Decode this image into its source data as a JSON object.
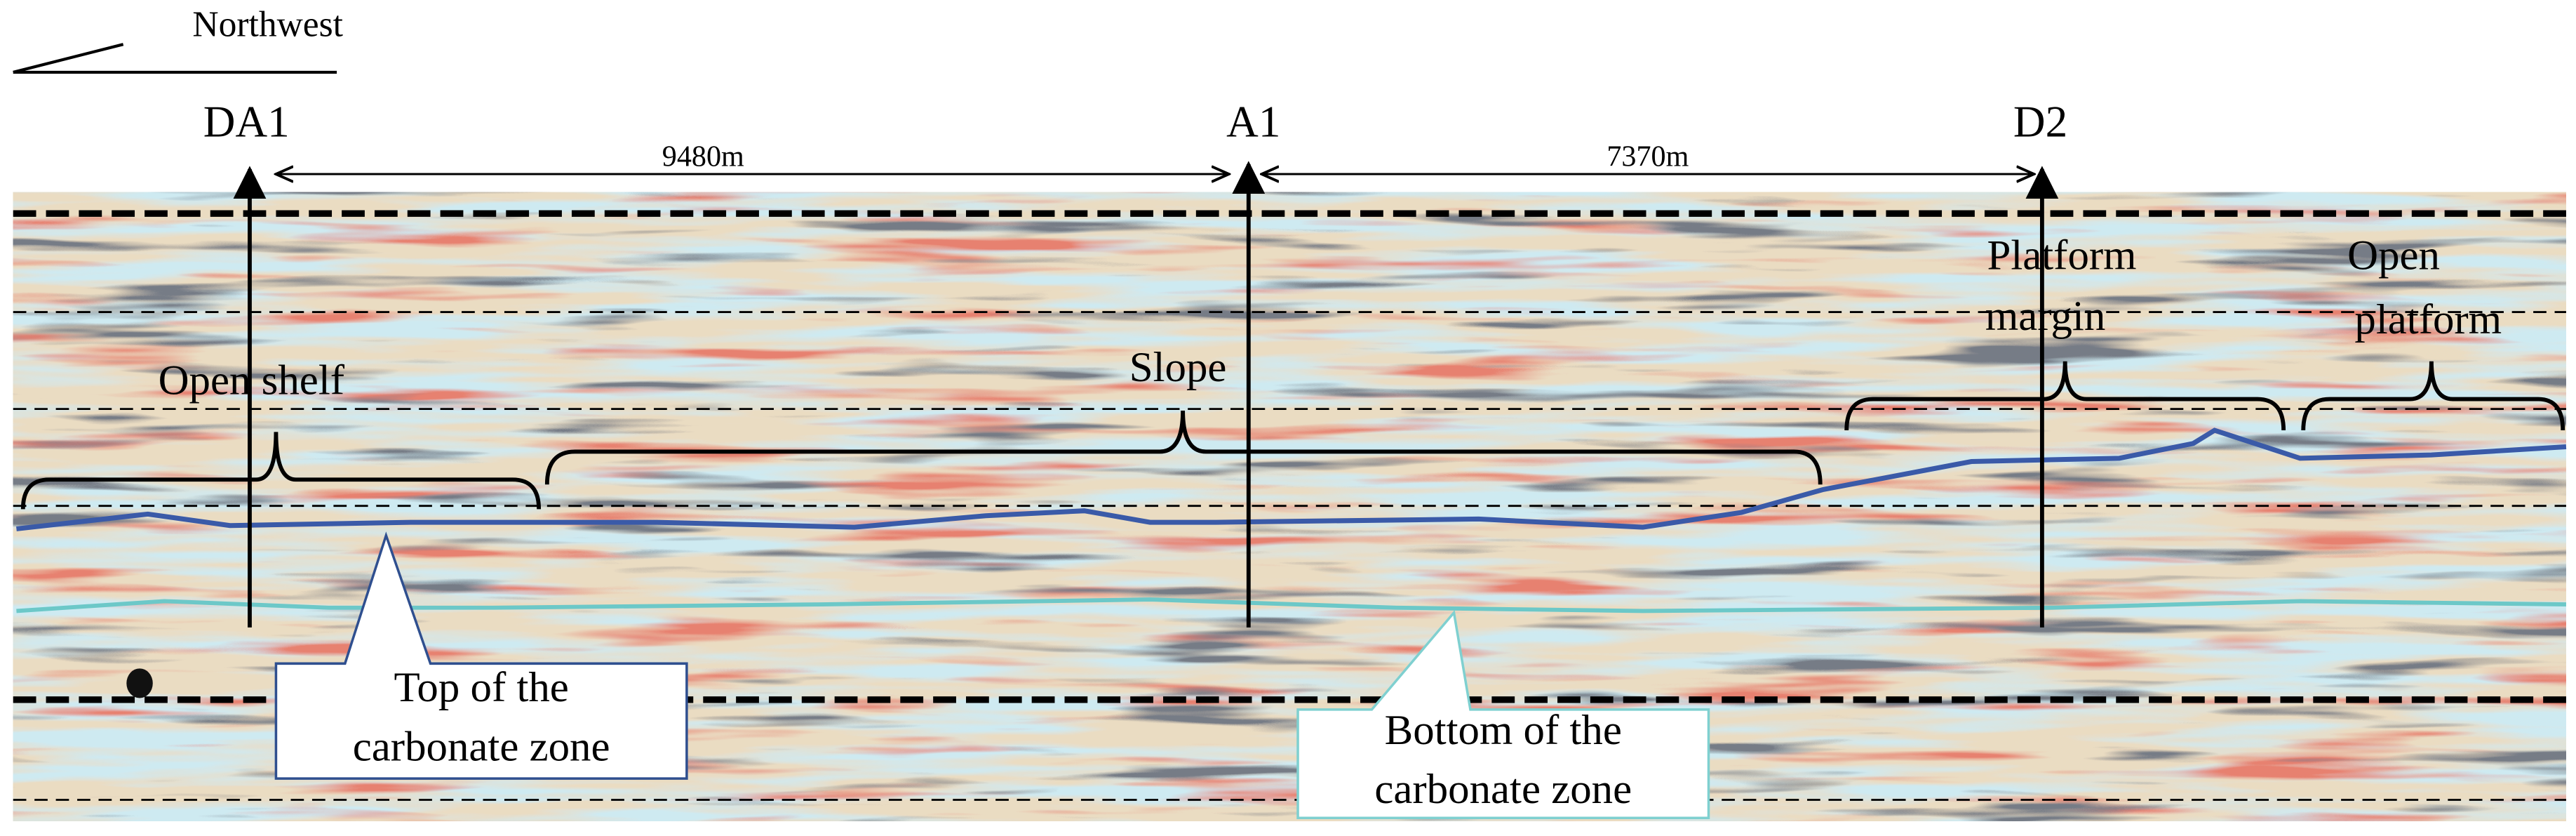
{
  "header": {
    "direction": "Northwest"
  },
  "wells": [
    {
      "label": "DA1"
    },
    {
      "label": "A1"
    },
    {
      "label": "D2"
    }
  ],
  "distances": [
    {
      "label": "9480m"
    },
    {
      "label": "7370m"
    }
  ],
  "zones": [
    {
      "lines": [
        "Open shelf"
      ]
    },
    {
      "lines": [
        "Slope"
      ]
    },
    {
      "lines": [
        "Platform",
        "margin"
      ]
    },
    {
      "lines": [
        "Open",
        "platform"
      ]
    }
  ],
  "callouts": [
    {
      "lines": [
        "Top of the",
        "carbonate zone"
      ]
    },
    {
      "lines": [
        "Bottom of the",
        "carbonate zone"
      ]
    }
  ]
}
